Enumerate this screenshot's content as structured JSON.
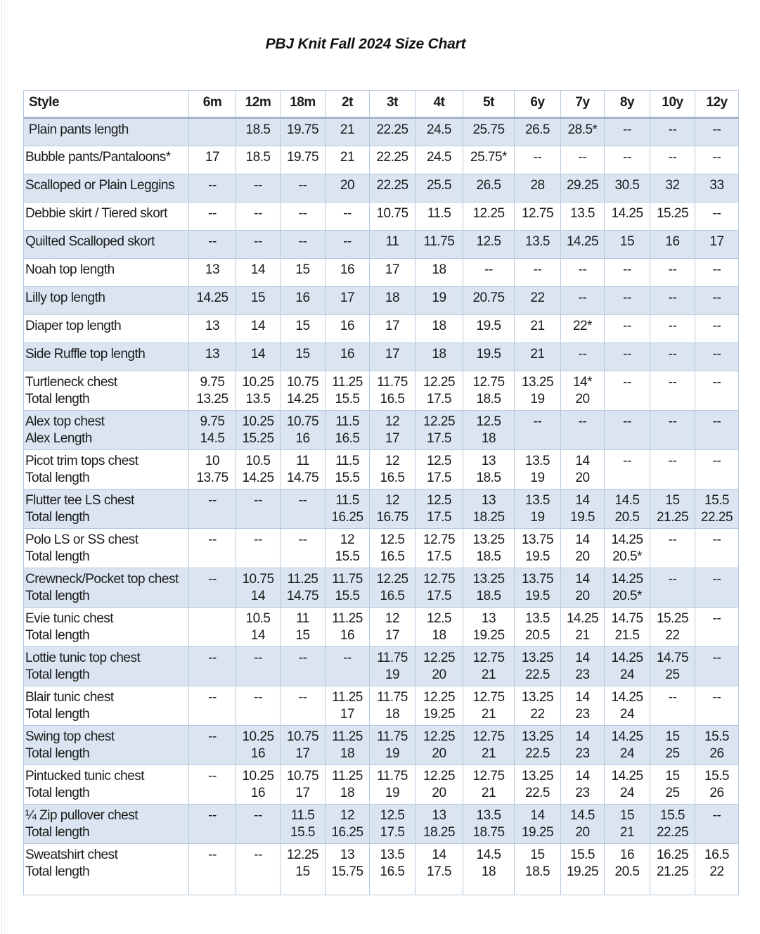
{
  "title": "PBJ Knit Fall 2024 Size Chart",
  "chart_data": {
    "type": "table",
    "title": "PBJ Knit Fall 2024 Size Chart",
    "columns": [
      "Style",
      "6m",
      "12m",
      "18m",
      "2t",
      "3t",
      "4t",
      "5t",
      "6y",
      "7y",
      "8y",
      "10y",
      "12y"
    ],
    "rows": [
      {
        "style": [
          " Plain pants length"
        ],
        "values": [
          [
            ""
          ],
          [
            "18.5"
          ],
          [
            "19.75"
          ],
          [
            "21"
          ],
          [
            "22.25"
          ],
          [
            "24.5"
          ],
          [
            "25.75"
          ],
          [
            "26.5"
          ],
          [
            "28.5*"
          ],
          [
            "--"
          ],
          [
            "--"
          ],
          [
            "--"
          ]
        ]
      },
      {
        "style": [
          "Bubble pants/Pantaloons*"
        ],
        "values": [
          [
            "17"
          ],
          [
            "18.5"
          ],
          [
            "19.75"
          ],
          [
            "21"
          ],
          [
            "22.25"
          ],
          [
            "24.5"
          ],
          [
            "25.75*"
          ],
          [
            "--"
          ],
          [
            "--"
          ],
          [
            "--"
          ],
          [
            "--"
          ],
          [
            "--"
          ]
        ]
      },
      {
        "style": [
          "Scalloped or Plain Leggins"
        ],
        "values": [
          [
            "--"
          ],
          [
            "--"
          ],
          [
            "--"
          ],
          [
            "20"
          ],
          [
            "22.25"
          ],
          [
            "25.5"
          ],
          [
            "26.5"
          ],
          [
            "28"
          ],
          [
            "29.25"
          ],
          [
            "30.5"
          ],
          [
            "32"
          ],
          [
            "33"
          ]
        ]
      },
      {
        "style": [
          "Debbie skirt / Tiered skort"
        ],
        "values": [
          [
            "--"
          ],
          [
            "--"
          ],
          [
            "--"
          ],
          [
            "--"
          ],
          [
            "10.75"
          ],
          [
            "11.5"
          ],
          [
            "12.25"
          ],
          [
            "12.75"
          ],
          [
            "13.5"
          ],
          [
            "14.25"
          ],
          [
            "15.25"
          ],
          [
            "--"
          ]
        ]
      },
      {
        "style": [
          "Quilted Scalloped skort"
        ],
        "values": [
          [
            "--"
          ],
          [
            "--"
          ],
          [
            "--"
          ],
          [
            "--"
          ],
          [
            "11"
          ],
          [
            "11.75"
          ],
          [
            "12.5"
          ],
          [
            "13.5"
          ],
          [
            "14.25"
          ],
          [
            "15"
          ],
          [
            "16"
          ],
          [
            "17"
          ]
        ]
      },
      {
        "style": [
          "Noah top length"
        ],
        "values": [
          [
            "13"
          ],
          [
            "14"
          ],
          [
            "15"
          ],
          [
            "16"
          ],
          [
            "17"
          ],
          [
            "18"
          ],
          [
            "--"
          ],
          [
            "--"
          ],
          [
            "--"
          ],
          [
            "--"
          ],
          [
            "--"
          ],
          [
            "--"
          ]
        ]
      },
      {
        "style": [
          "Lilly top length"
        ],
        "values": [
          [
            "14.25"
          ],
          [
            "15"
          ],
          [
            "16"
          ],
          [
            "17"
          ],
          [
            "18"
          ],
          [
            "19"
          ],
          [
            "20.75"
          ],
          [
            "22"
          ],
          [
            "--"
          ],
          [
            "--"
          ],
          [
            "--"
          ],
          [
            "--"
          ]
        ]
      },
      {
        "style": [
          "Diaper top length"
        ],
        "values": [
          [
            "13"
          ],
          [
            "14"
          ],
          [
            "15"
          ],
          [
            "16"
          ],
          [
            "17"
          ],
          [
            "18"
          ],
          [
            "19.5"
          ],
          [
            "21"
          ],
          [
            "22*"
          ],
          [
            "--"
          ],
          [
            "--"
          ],
          [
            "--"
          ]
        ]
      },
      {
        "style": [
          "Side Ruffle top length"
        ],
        "values": [
          [
            "13"
          ],
          [
            "14"
          ],
          [
            "15"
          ],
          [
            "16"
          ],
          [
            "17"
          ],
          [
            "18"
          ],
          [
            "19.5"
          ],
          [
            "21"
          ],
          [
            "--"
          ],
          [
            "--"
          ],
          [
            "--"
          ],
          [
            "--"
          ]
        ]
      },
      {
        "style": [
          "Turtleneck chest",
          "Total length"
        ],
        "values": [
          [
            "9.75",
            "13.25"
          ],
          [
            "10.25",
            "13.5"
          ],
          [
            "10.75",
            "14.25"
          ],
          [
            "11.25",
            "15.5"
          ],
          [
            "11.75",
            "16.5"
          ],
          [
            "12.25",
            "17.5"
          ],
          [
            "12.75",
            "18.5"
          ],
          [
            "13.25",
            "19"
          ],
          [
            "14*",
            "20"
          ],
          [
            "--"
          ],
          [
            "--"
          ],
          [
            "--"
          ]
        ]
      },
      {
        "style": [
          "Alex top chest",
          "Alex Length"
        ],
        "values": [
          [
            "9.75",
            "14.5"
          ],
          [
            "10.25",
            "15.25"
          ],
          [
            "10.75",
            "16"
          ],
          [
            "11.5",
            "16.5"
          ],
          [
            "12",
            "17"
          ],
          [
            "12.25",
            "17.5"
          ],
          [
            "12.5",
            "18"
          ],
          [
            "--"
          ],
          [
            "--"
          ],
          [
            "--"
          ],
          [
            "--"
          ],
          [
            "--"
          ]
        ]
      },
      {
        "style": [
          "Picot trim tops chest",
          "Total length"
        ],
        "values": [
          [
            "10",
            "13.75"
          ],
          [
            "10.5",
            "14.25"
          ],
          [
            "11",
            "14.75"
          ],
          [
            "11.5",
            "15.5"
          ],
          [
            "12",
            "16.5"
          ],
          [
            "12.5",
            "17.5"
          ],
          [
            "13",
            "18.5"
          ],
          [
            "13.5",
            "19"
          ],
          [
            "14",
            "20"
          ],
          [
            "--"
          ],
          [
            "--"
          ],
          [
            "--"
          ]
        ]
      },
      {
        "style": [
          "Flutter tee LS chest",
          "Total length"
        ],
        "values": [
          [
            "--"
          ],
          [
            "--"
          ],
          [
            "--"
          ],
          [
            "11.5",
            "16.25"
          ],
          [
            "12",
            "16.75"
          ],
          [
            "12.5",
            "17.5"
          ],
          [
            "13",
            "18.25"
          ],
          [
            "13.5",
            "19"
          ],
          [
            "14",
            "19.5"
          ],
          [
            "14.5",
            "20.5"
          ],
          [
            "15",
            "21.25"
          ],
          [
            "15.5",
            "22.25"
          ]
        ]
      },
      {
        "style": [
          "Polo LS or SS chest",
          "Total length"
        ],
        "values": [
          [
            "--"
          ],
          [
            "--"
          ],
          [
            "--"
          ],
          [
            "12",
            "15.5"
          ],
          [
            "12.5",
            "16.5"
          ],
          [
            "12.75",
            "17.5"
          ],
          [
            "13.25",
            "18.5"
          ],
          [
            "13.75",
            "19.5"
          ],
          [
            "14",
            "20"
          ],
          [
            "14.25",
            "20.5*"
          ],
          [
            "--"
          ],
          [
            "--"
          ]
        ]
      },
      {
        "style": [
          "Crewneck/Pocket top chest",
          "Total length"
        ],
        "values": [
          [
            "--"
          ],
          [
            "10.75",
            "14"
          ],
          [
            "11.25",
            "14.75"
          ],
          [
            "11.75",
            "15.5"
          ],
          [
            "12.25",
            "16.5"
          ],
          [
            "12.75",
            "17.5"
          ],
          [
            "13.25",
            "18.5"
          ],
          [
            "13.75",
            "19.5"
          ],
          [
            "14",
            "20"
          ],
          [
            "14.25",
            "20.5*"
          ],
          [
            "--"
          ],
          [
            "--"
          ]
        ]
      },
      {
        "style": [
          "Evie tunic chest",
          "Total length"
        ],
        "values": [
          [
            ""
          ],
          [
            "10.5",
            "14"
          ],
          [
            "11",
            "15"
          ],
          [
            "11.25",
            "16"
          ],
          [
            "12",
            "17"
          ],
          [
            "12.5",
            "18"
          ],
          [
            "13",
            "19.25"
          ],
          [
            "13.5",
            "20.5"
          ],
          [
            "14.25",
            "21"
          ],
          [
            "14.75",
            "21.5"
          ],
          [
            "15.25",
            "22"
          ],
          [
            "--"
          ]
        ]
      },
      {
        "style": [
          "Lottie tunic top chest",
          "Total length"
        ],
        "values": [
          [
            "--"
          ],
          [
            "--"
          ],
          [
            "--"
          ],
          [
            "--"
          ],
          [
            "11.75",
            "19"
          ],
          [
            "12.25",
            "20"
          ],
          [
            "12.75",
            "21"
          ],
          [
            "13.25",
            "22.5"
          ],
          [
            "14",
            "23"
          ],
          [
            "14.25",
            "24"
          ],
          [
            "14.75",
            "25"
          ],
          [
            "--"
          ]
        ]
      },
      {
        "style": [
          "Blair tunic chest",
          "Total length"
        ],
        "values": [
          [
            "--"
          ],
          [
            "--"
          ],
          [
            "--"
          ],
          [
            "11.25",
            "17"
          ],
          [
            "11.75",
            "18"
          ],
          [
            "12.25",
            "19.25"
          ],
          [
            "12.75",
            "21"
          ],
          [
            "13.25",
            "22"
          ],
          [
            "14",
            "23"
          ],
          [
            "14.25",
            "24"
          ],
          [
            "--"
          ],
          [
            "--"
          ]
        ]
      },
      {
        "style": [
          "Swing top chest",
          "Total length"
        ],
        "values": [
          [
            "--"
          ],
          [
            "10.25",
            "16"
          ],
          [
            "10.75",
            "17"
          ],
          [
            "11.25",
            "18"
          ],
          [
            "11.75",
            "19"
          ],
          [
            "12.25",
            "20"
          ],
          [
            "12.75",
            "21"
          ],
          [
            "13.25",
            "22.5"
          ],
          [
            "14",
            "23"
          ],
          [
            "14.25",
            "24"
          ],
          [
            "15",
            "25"
          ],
          [
            "15.5",
            "26"
          ]
        ]
      },
      {
        "style": [
          "Pintucked tunic chest",
          "Total length"
        ],
        "values": [
          [
            "--"
          ],
          [
            "10.25",
            "16"
          ],
          [
            "10.75",
            "17"
          ],
          [
            "11.25",
            "18"
          ],
          [
            "11.75",
            "19"
          ],
          [
            "12.25",
            "20"
          ],
          [
            "12.75",
            "21"
          ],
          [
            "13.25",
            "22.5"
          ],
          [
            "14",
            "23"
          ],
          [
            "14.25",
            "24"
          ],
          [
            "15",
            "25"
          ],
          [
            "15.5",
            "26"
          ]
        ]
      },
      {
        "style": [
          "¼ Zip pullover chest",
          "Total length"
        ],
        "values": [
          [
            "--"
          ],
          [
            "--"
          ],
          [
            "11.5",
            "15.5"
          ],
          [
            "12",
            "16.25"
          ],
          [
            "12.5",
            "17.5"
          ],
          [
            "13",
            "18.25"
          ],
          [
            "13.5",
            "18.75"
          ],
          [
            "14",
            "19.25"
          ],
          [
            "14.5",
            "20"
          ],
          [
            "15",
            "21"
          ],
          [
            "15.5",
            "22.25"
          ],
          [
            "--"
          ]
        ]
      },
      {
        "style": [
          "Sweatshirt chest",
          "Total length"
        ],
        "values": [
          [
            "--"
          ],
          [
            "--"
          ],
          [
            "12.25",
            "15"
          ],
          [
            "13",
            "15.75"
          ],
          [
            "13.5",
            "16.5"
          ],
          [
            "14",
            "17.5"
          ],
          [
            "14.5",
            "18"
          ],
          [
            "15",
            "18.5"
          ],
          [
            "15.5",
            "19.25"
          ],
          [
            "16",
            "20.5"
          ],
          [
            "16.25",
            "21.25"
          ],
          [
            "16.5",
            "22"
          ]
        ]
      }
    ]
  }
}
